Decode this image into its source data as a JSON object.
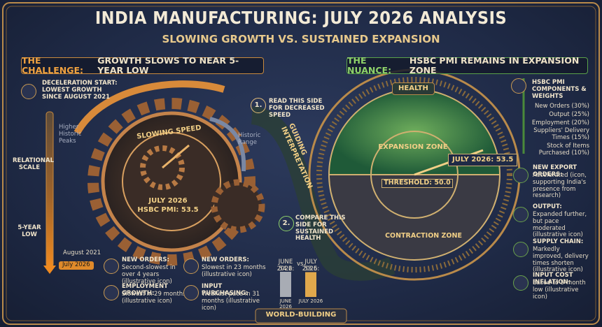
{
  "header": {
    "title": "INDIA MANUFACTURING: JULY 2026 ANALYSIS",
    "subtitle": "SLOWING GROWTH VS. SUSTAINED EXPANSION"
  },
  "challenge": {
    "banner_lead": "THE CHALLENGE:",
    "banner_text": "GROWTH SLOWS TO NEAR 5-YEAR LOW",
    "deceleration": "DECELERATION START: LOWEST GROWTH SINCE AUGUST 2021",
    "scale": {
      "top": "Higher Historic Peaks",
      "label": "RELATIONAL SCALE",
      "low": "5-YEAR LOW",
      "start": "August 2021",
      "end": "July 2026"
    },
    "gear": {
      "label": "SLOWING SPEED",
      "line1": "JULY 2026",
      "line2": "HSBC PMI: 53.5"
    },
    "range": "Historic Range",
    "items": [
      {
        "head": "NEW ORDERS:",
        "text": "Second-slowest in over 4 years (illustrative icon)"
      },
      {
        "head": "EMPLOYMENT GROWTH:",
        "text": "Slowest in 29 months (illustrative icon)"
      },
      {
        "head": "NEW ORDERS:",
        "text": "Slowest in 23 months (illustrative icon)"
      },
      {
        "head": "INPUT PURCHASING:",
        "text": "Weakest pace in 31 months (illustrative icon)"
      }
    ]
  },
  "guide": {
    "step1": {
      "num": "1.",
      "text": "READ THIS SIDE FOR DECREASED SPEED"
    },
    "label": "GUIDING INTERPRETATION",
    "step2": {
      "num": "2.",
      "text": "COMPARE THIS SIDE FOR SUSTAINED HEALTH"
    }
  },
  "mini_chart": {
    "vs": "vs.",
    "bars": [
      {
        "label": "JUNE 2026:",
        "value": 54.2,
        "axis": "JUNE 2026",
        "color": "#a8acb4"
      },
      {
        "label": "JULY 2026:",
        "value": 53.5,
        "axis": "JULY 2026",
        "color": "#e0a84c"
      }
    ]
  },
  "nuance": {
    "banner_lead": "THE NUANCE:",
    "banner_text": "HSBC PMI REMAINS IN EXPANSION ZONE",
    "gauge": {
      "health": "HEALTH",
      "expansion": "EXPANSION ZONE",
      "reading": "JULY 2026: 53.5",
      "threshold": "THRESHOLD: 50.0",
      "contraction": "CONTRACTION ZONE"
    },
    "components": {
      "title": "HSBC PMI COMPONENTS & WEIGHTS",
      "items": [
        "New Orders (30%)",
        "Output (25%)",
        "Employment (20%)",
        "Suppliers' Delivery Times (15%)",
        "Stock of Items Purchased (10%)"
      ]
    },
    "items": [
      {
        "head": "NEW EXPORT ORDERS:",
        "text": "Accelerated (icon, supporting India's presence from research)"
      },
      {
        "head": "OUTPUT:",
        "text": "Expanded further, but pace moderated (illustrative icon)"
      },
      {
        "head": "SUPPLY CHAIN:",
        "text": "Markedly improved, delivery times shorten (illustrative icon)"
      },
      {
        "head": "INPUT COST INFLATION:",
        "text": "Eased to 5-month low (illustrative icon)"
      }
    ]
  },
  "footer": {
    "label": "WORLD-BUILDING"
  }
}
